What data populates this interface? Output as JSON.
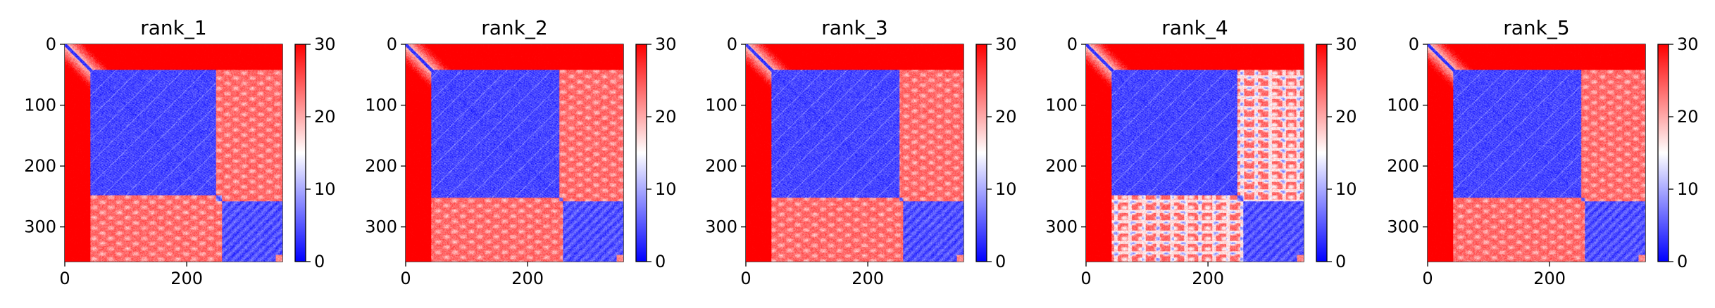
{
  "figure": {
    "colormap": {
      "name": "bwr",
      "low": "#0000ff",
      "mid": "#ffffff",
      "high": "#ff0000"
    },
    "text_color": "#000000"
  },
  "chart_data": [
    {
      "type": "heatmap",
      "title": "rank_1",
      "n": 357,
      "domain_split": 248,
      "tail_start": 258,
      "tail_end": 345,
      "variant": 0,
      "x_ticks": [
        0,
        200
      ],
      "y_ticks": [
        0,
        100,
        200,
        300
      ],
      "colorbar": {
        "min": 0,
        "max": 30,
        "ticks": [
          0,
          10,
          20,
          30
        ]
      }
    },
    {
      "type": "heatmap",
      "title": "rank_2",
      "n": 357,
      "domain_split": 252,
      "tail_start": 258,
      "tail_end": 345,
      "variant": 1,
      "x_ticks": [
        0,
        200
      ],
      "y_ticks": [
        0,
        100,
        200,
        300
      ],
      "colorbar": {
        "min": 0,
        "max": 30,
        "ticks": [
          0,
          10,
          20,
          30
        ]
      }
    },
    {
      "type": "heatmap",
      "title": "rank_3",
      "n": 357,
      "domain_split": 252,
      "tail_start": 258,
      "tail_end": 345,
      "variant": 2,
      "x_ticks": [
        0,
        200
      ],
      "y_ticks": [
        0,
        100,
        200,
        300
      ],
      "colorbar": {
        "min": 0,
        "max": 30,
        "ticks": [
          0,
          10,
          20,
          30
        ]
      }
    },
    {
      "type": "heatmap",
      "title": "rank_4",
      "n": 357,
      "domain_split": 248,
      "tail_start": 258,
      "tail_end": 345,
      "variant": 3,
      "x_ticks": [
        0,
        200
      ],
      "y_ticks": [
        0,
        100,
        200,
        300
      ],
      "colorbar": {
        "min": 0,
        "max": 30,
        "ticks": [
          0,
          10,
          20,
          30
        ]
      }
    },
    {
      "type": "heatmap",
      "title": "rank_5",
      "n": 357,
      "domain_split": 252,
      "tail_start": 258,
      "tail_end": 345,
      "variant": 4,
      "x_ticks": [
        0,
        200
      ],
      "y_ticks": [
        0,
        100,
        200,
        300
      ],
      "colorbar": {
        "min": 0,
        "max": 30,
        "ticks": [
          0,
          10,
          20,
          30
        ]
      }
    }
  ]
}
